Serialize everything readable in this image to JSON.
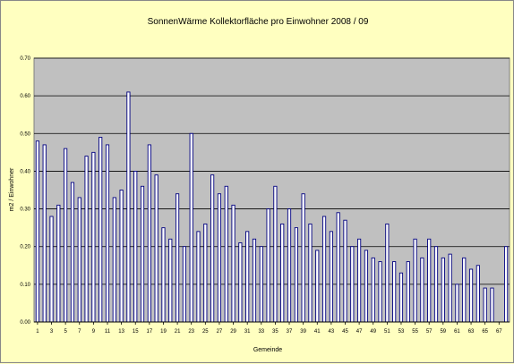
{
  "chart_data": {
    "type": "bar",
    "title": "SonnenWärme   Kollektorfläche pro Einwohner 2008 / 09",
    "xlabel": "Gemeinde",
    "ylabel": "m2 / Einwohner",
    "ylim": [
      0,
      0.7
    ],
    "yticks": [
      "0.00",
      "0.10",
      "0.20",
      "0.30",
      "0.40",
      "0.50",
      "0.60",
      "0.70"
    ],
    "xticks": [
      {
        "index": 0,
        "label": "1"
      },
      {
        "index": 2,
        "label": "3"
      },
      {
        "index": 4,
        "label": "5"
      },
      {
        "index": 6,
        "label": "7"
      },
      {
        "index": 8,
        "label": "9"
      },
      {
        "index": 10,
        "label": "11"
      },
      {
        "index": 12,
        "label": "13"
      },
      {
        "index": 14,
        "label": "15"
      },
      {
        "index": 16,
        "label": "17"
      },
      {
        "index": 18,
        "label": "19"
      },
      {
        "index": 20,
        "label": "21"
      },
      {
        "index": 22,
        "label": "23"
      },
      {
        "index": 24,
        "label": "25"
      },
      {
        "index": 26,
        "label": "27"
      },
      {
        "index": 28,
        "label": "29"
      },
      {
        "index": 30,
        "label": "31"
      },
      {
        "index": 32,
        "label": "33"
      },
      {
        "index": 34,
        "label": "35"
      },
      {
        "index": 36,
        "label": "37"
      },
      {
        "index": 38,
        "label": "39"
      },
      {
        "index": 40,
        "label": "41"
      },
      {
        "index": 42,
        "label": "43"
      },
      {
        "index": 44,
        "label": "45"
      },
      {
        "index": 46,
        "label": "47"
      },
      {
        "index": 48,
        "label": "49"
      },
      {
        "index": 50,
        "label": "51"
      },
      {
        "index": 52,
        "label": "53"
      },
      {
        "index": 54,
        "label": "55"
      },
      {
        "index": 56,
        "label": "57"
      },
      {
        "index": 58,
        "label": "59"
      },
      {
        "index": 60,
        "label": "61"
      },
      {
        "index": 62,
        "label": "63"
      },
      {
        "index": 64,
        "label": "65"
      },
      {
        "index": 66,
        "label": "67"
      }
    ],
    "values": [
      0.48,
      0.47,
      0.28,
      0.31,
      0.46,
      0.37,
      0.33,
      0.44,
      0.45,
      0.49,
      0.47,
      0.33,
      0.35,
      0.61,
      0.4,
      0.36,
      0.47,
      0.39,
      0.25,
      0.22,
      0.34,
      0.2,
      0.5,
      0.24,
      0.26,
      0.39,
      0.34,
      0.36,
      0.31,
      0.21,
      0.24,
      0.22,
      0.2,
      0.3,
      0.36,
      0.26,
      0.3,
      0.25,
      0.34,
      0.26,
      0.19,
      0.28,
      0.24,
      0.29,
      0.27,
      0.2,
      0.22,
      0.19,
      0.17,
      0.16,
      0.26,
      0.16,
      0.13,
      0.16,
      0.22,
      0.17,
      0.22,
      0.2,
      0.17,
      0.18,
      0.1,
      0.17,
      0.14,
      0.15,
      0.09,
      0.09,
      0.0,
      0.2
    ],
    "colors": {
      "bar_fill": "#ffffff",
      "bar_stroke": "#000080",
      "plot_bg": "#c0c0c0",
      "page_bg": "#ffffc0",
      "grid": "#000000"
    },
    "grid": true,
    "legend": "none"
  }
}
